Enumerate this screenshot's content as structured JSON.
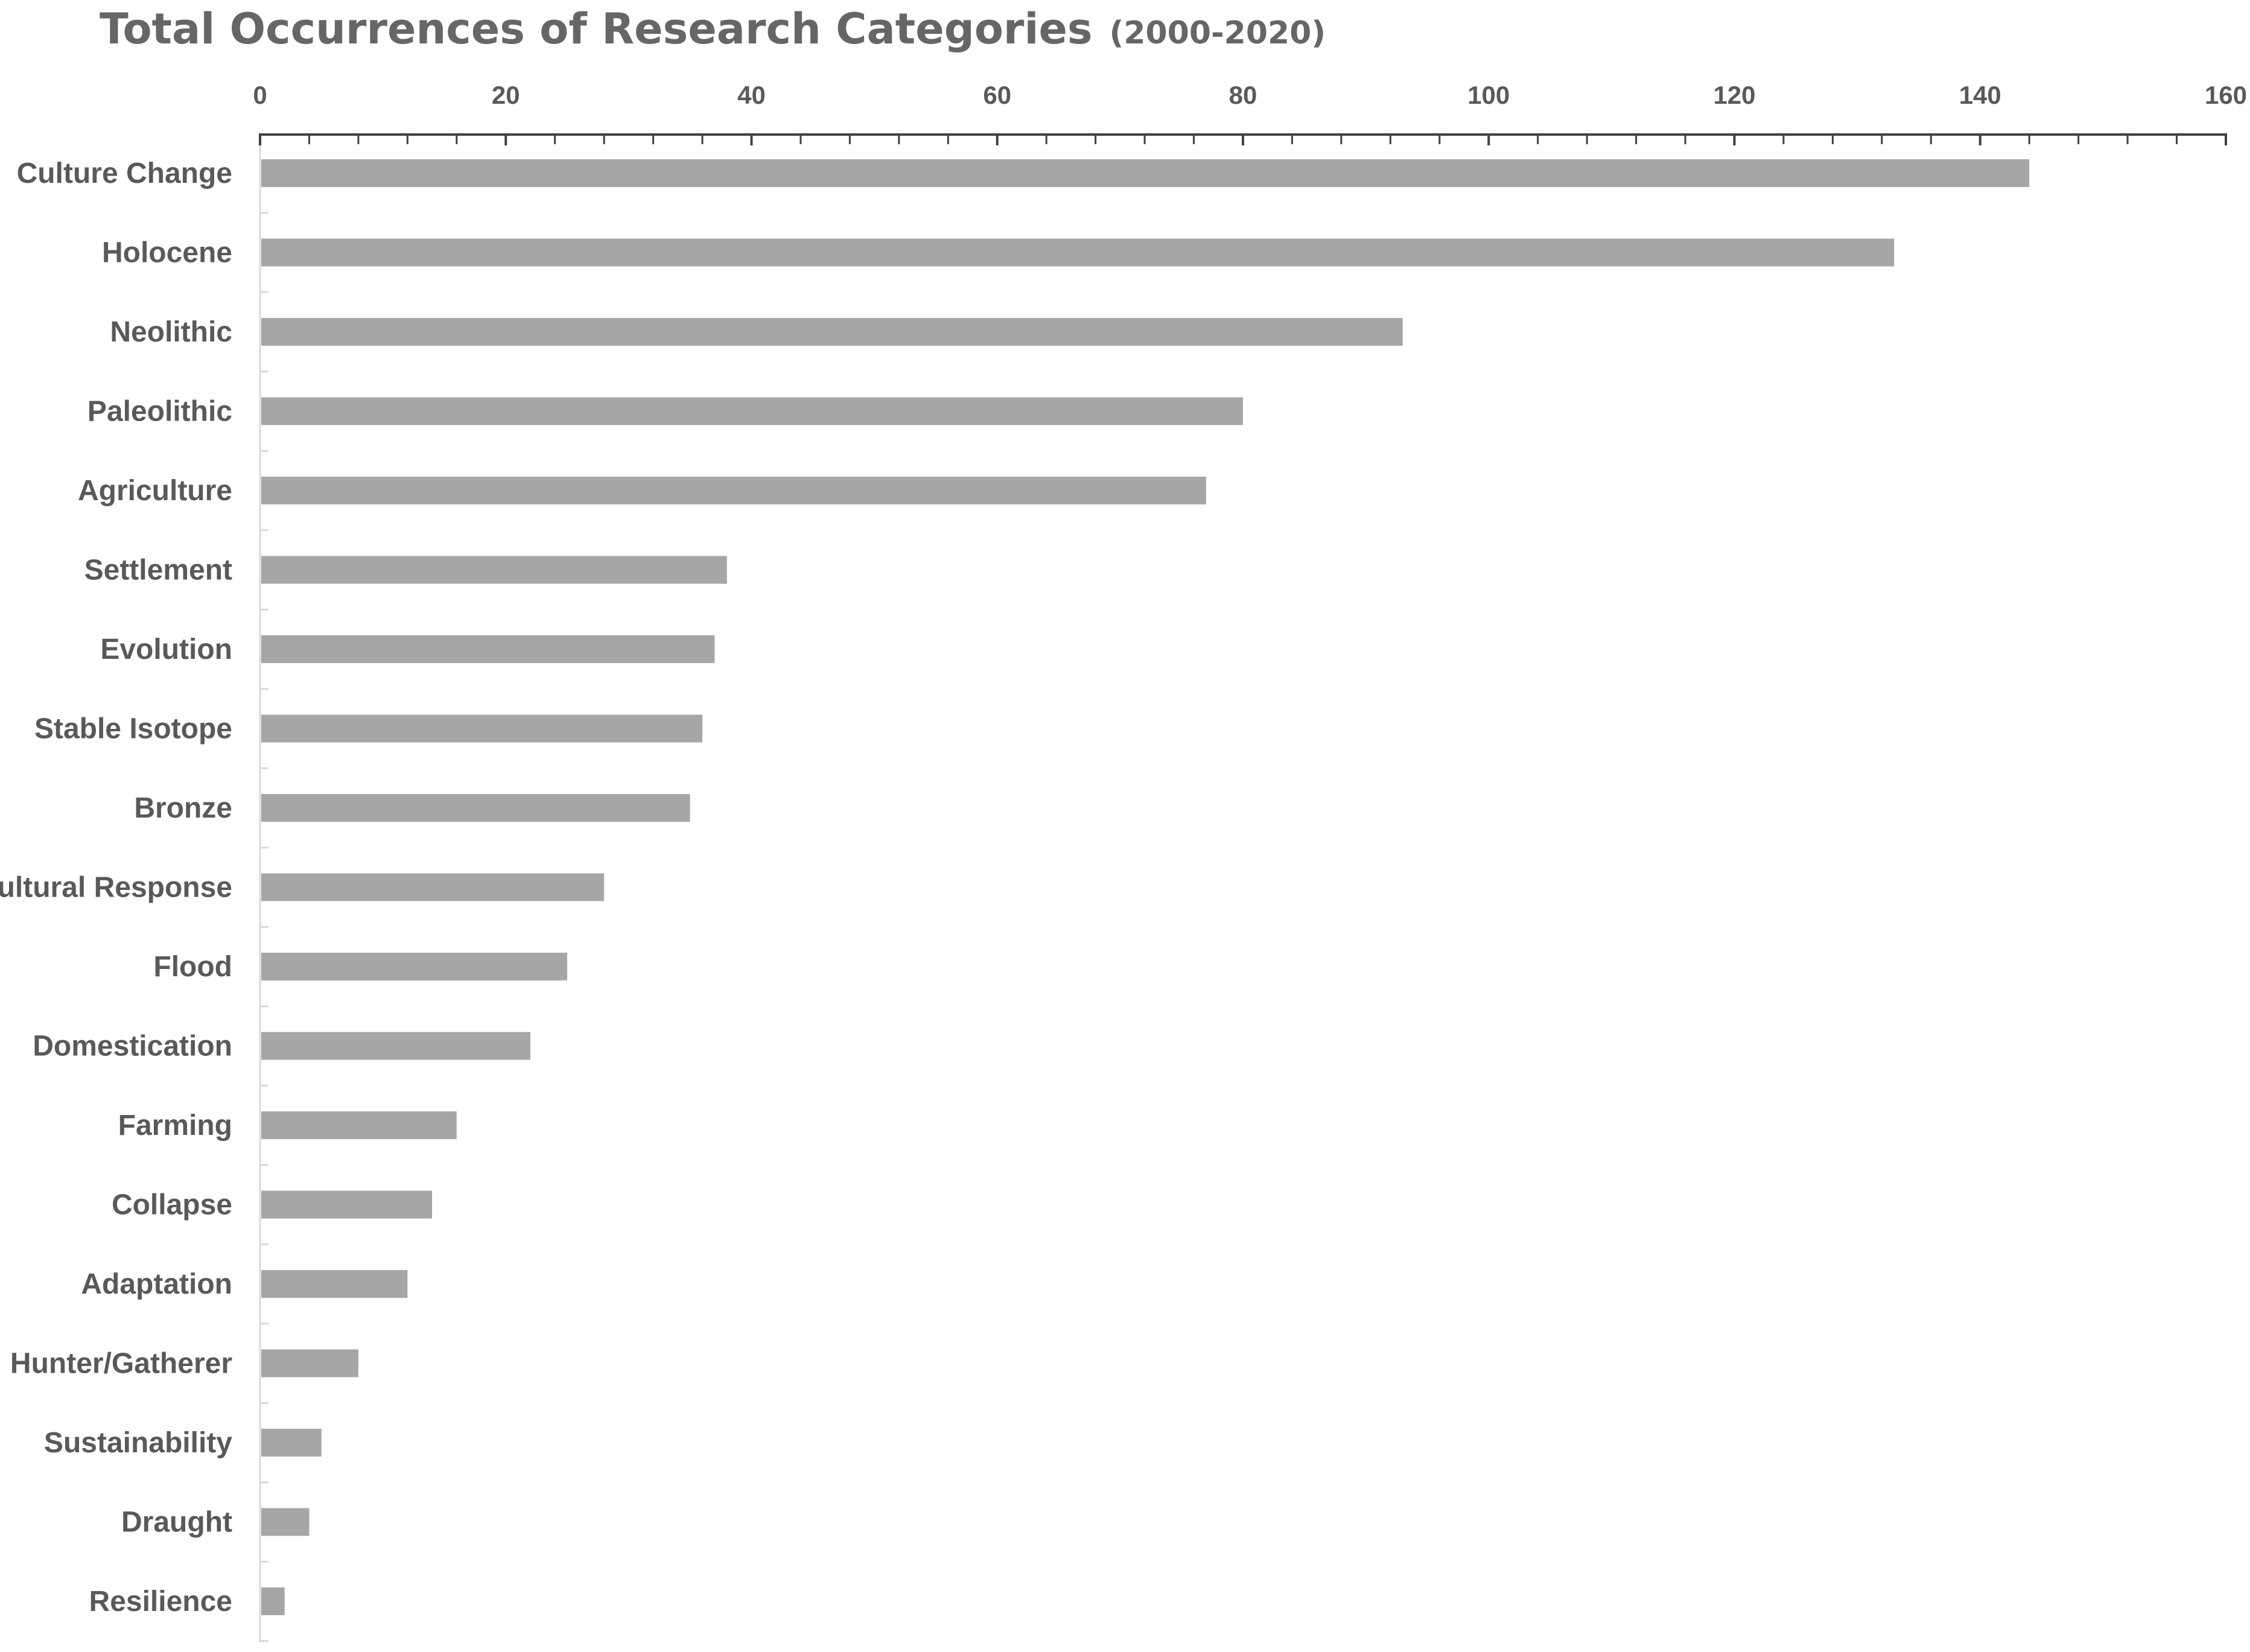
{
  "chart_data": {
    "type": "bar",
    "orientation": "horizontal",
    "title": "Total Occurrences of Research Categories",
    "subtitle": "(2000-2020)",
    "xlabel": "",
    "ylabel": "",
    "xlim": [
      0,
      160
    ],
    "x_ticks": [
      0,
      20,
      40,
      60,
      80,
      100,
      120,
      140,
      160
    ],
    "x_axis_position": "top",
    "grid": false,
    "categories": [
      "Culture Change",
      "Holocene",
      "Neolithic",
      "Paleolithic",
      "Agriculture",
      "Settlement",
      "Evolution",
      "Stable Isotope",
      "Bronze",
      "Cultural Response",
      "Flood",
      "Domestication",
      "Farming",
      "Collapse",
      "Adaptation",
      "Hunter/Gatherer",
      "Sustainability",
      "Draught",
      "Resilience"
    ],
    "values": [
      144,
      133,
      93,
      80,
      77,
      38,
      37,
      36,
      35,
      28,
      25,
      22,
      16,
      14,
      12,
      8,
      5,
      4,
      2
    ],
    "colors": {
      "bar": "#a6a6a6",
      "axis": "#404040",
      "text": "#595959",
      "title": "#666666"
    }
  }
}
